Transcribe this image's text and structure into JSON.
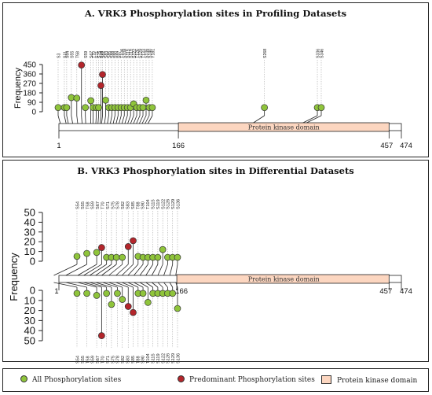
{
  "colors": {
    "green": "#8fc43b",
    "red": "#b3252b",
    "domain": "#fcd6c0"
  },
  "panelA": {
    "title": "A. VRK3 Phosphorylation sites in Profiling Datasets",
    "ylabel": "Frequency",
    "yticks": [
      "450",
      "360",
      "270",
      "180",
      "90",
      "0"
    ],
    "ymax": 450,
    "domain_label": "Protein kinase domain",
    "domain_start": 166,
    "domain_end": 457,
    "protein_length": 474,
    "axis_ticks": [
      "1",
      "166",
      "457",
      "474"
    ],
    "site_labels": [
      "S3",
      "S11",
      "S54",
      "S55",
      "T58",
      "S59",
      "S67",
      "T70",
      "S71",
      "S75",
      "S78",
      "S82",
      "S83",
      "S85",
      "S88",
      "S90",
      "S97",
      "T104",
      "S108",
      "S115",
      "S119",
      "S122",
      "T126",
      "S129",
      "T133",
      "S136",
      "S140",
      "Y181",
      "S268",
      "S336",
      "S346"
    ],
    "sites": [
      {
        "pos": 3,
        "freq": 40,
        "type": "all"
      },
      {
        "pos": 11,
        "freq": 40,
        "type": "all"
      },
      {
        "pos": 14,
        "freq": 40,
        "type": "all"
      },
      {
        "pos": 20,
        "freq": 135,
        "type": "all"
      },
      {
        "pos": 27,
        "freq": 130,
        "type": "all"
      },
      {
        "pos": 33,
        "freq": 445,
        "type": "predominant"
      },
      {
        "pos": 38,
        "freq": 40,
        "type": "all"
      },
      {
        "pos": 45,
        "freq": 105,
        "type": "all"
      },
      {
        "pos": 48,
        "freq": 40,
        "type": "all"
      },
      {
        "pos": 52,
        "freq": 40,
        "type": "all"
      },
      {
        "pos": 55,
        "freq": 40,
        "type": "all"
      },
      {
        "pos": 58,
        "freq": 250,
        "type": "predominant"
      },
      {
        "pos": 60,
        "freq": 355,
        "type": "predominant"
      },
      {
        "pos": 64,
        "freq": 110,
        "type": "all"
      },
      {
        "pos": 68,
        "freq": 40,
        "type": "all"
      },
      {
        "pos": 72,
        "freq": 40,
        "type": "all"
      },
      {
        "pos": 76,
        "freq": 40,
        "type": "all"
      },
      {
        "pos": 80,
        "freq": 40,
        "type": "all"
      },
      {
        "pos": 84,
        "freq": 40,
        "type": "all"
      },
      {
        "pos": 88,
        "freq": 40,
        "type": "all"
      },
      {
        "pos": 92,
        "freq": 40,
        "type": "all"
      },
      {
        "pos": 96,
        "freq": 40,
        "type": "all"
      },
      {
        "pos": 100,
        "freq": 75,
        "type": "all"
      },
      {
        "pos": 104,
        "freq": 40,
        "type": "all"
      },
      {
        "pos": 108,
        "freq": 40,
        "type": "all"
      },
      {
        "pos": 112,
        "freq": 40,
        "type": "all"
      },
      {
        "pos": 116,
        "freq": 110,
        "type": "all"
      },
      {
        "pos": 120,
        "freq": 40,
        "type": "all"
      },
      {
        "pos": 124,
        "freq": 40,
        "type": "all"
      },
      {
        "pos": 268,
        "freq": 40,
        "type": "all"
      },
      {
        "pos": 336,
        "freq": 40,
        "type": "all"
      },
      {
        "pos": 341,
        "freq": 40,
        "type": "all"
      }
    ]
  },
  "panelB": {
    "title": "B. VRK3 Phosphorylation sites in Differential Datasets",
    "ylabel": "Frequency",
    "yticks_up": [
      "50",
      "40",
      "30",
      "20",
      "10",
      "0"
    ],
    "yticks_down": [
      "0",
      "10",
      "20",
      "30",
      "40",
      "50"
    ],
    "ymax": 50,
    "domain_label": "Protein kinase domain",
    "domain_start": 166,
    "domain_end": 457,
    "protein_length": 474,
    "axis_ticks": [
      "1",
      "166",
      "457",
      "474"
    ],
    "site_labels": [
      "S54",
      "S55",
      "T58",
      "S59",
      "S67",
      "T70",
      "S71",
      "S75",
      "S78",
      "S82",
      "S83",
      "S85",
      "T88",
      "S90",
      "T104",
      "S115",
      "S119",
      "S122",
      "S126",
      "S129",
      "S136"
    ],
    "sites_up": [
      {
        "pos": 20,
        "freq": 5,
        "type": "all"
      },
      {
        "pos": 30,
        "freq": 8,
        "type": "all"
      },
      {
        "pos": 40,
        "freq": 9,
        "type": "all"
      },
      {
        "pos": 45,
        "freq": 14,
        "type": "predominant"
      },
      {
        "pos": 50,
        "freq": 4,
        "type": "all"
      },
      {
        "pos": 55,
        "freq": 4,
        "type": "all"
      },
      {
        "pos": 60,
        "freq": 4,
        "type": "all"
      },
      {
        "pos": 66,
        "freq": 4,
        "type": "all"
      },
      {
        "pos": 72,
        "freq": 15,
        "type": "predominant"
      },
      {
        "pos": 77,
        "freq": 21,
        "type": "predominant"
      },
      {
        "pos": 82,
        "freq": 5,
        "type": "all"
      },
      {
        "pos": 87,
        "freq": 4,
        "type": "all"
      },
      {
        "pos": 92,
        "freq": 4,
        "type": "all"
      },
      {
        "pos": 97,
        "freq": 4,
        "type": "all"
      },
      {
        "pos": 102,
        "freq": 4,
        "type": "all"
      },
      {
        "pos": 107,
        "freq": 12,
        "type": "all"
      },
      {
        "pos": 112,
        "freq": 4,
        "type": "all"
      },
      {
        "pos": 117,
        "freq": 4,
        "type": "all"
      },
      {
        "pos": 122,
        "freq": 4,
        "type": "all"
      }
    ],
    "sites_down": [
      {
        "pos": 20,
        "freq": 3,
        "type": "all"
      },
      {
        "pos": 30,
        "freq": 3,
        "type": "all"
      },
      {
        "pos": 40,
        "freq": 5,
        "type": "all"
      },
      {
        "pos": 45,
        "freq": 45,
        "type": "predominant"
      },
      {
        "pos": 50,
        "freq": 3,
        "type": "all"
      },
      {
        "pos": 55,
        "freq": 14,
        "type": "all"
      },
      {
        "pos": 61,
        "freq": 3,
        "type": "all"
      },
      {
        "pos": 66,
        "freq": 9,
        "type": "all"
      },
      {
        "pos": 72,
        "freq": 16,
        "type": "predominant"
      },
      {
        "pos": 77,
        "freq": 22,
        "type": "predominant"
      },
      {
        "pos": 82,
        "freq": 3,
        "type": "all"
      },
      {
        "pos": 87,
        "freq": 3,
        "type": "all"
      },
      {
        "pos": 92,
        "freq": 12,
        "type": "all"
      },
      {
        "pos": 97,
        "freq": 3,
        "type": "all"
      },
      {
        "pos": 102,
        "freq": 3,
        "type": "all"
      },
      {
        "pos": 107,
        "freq": 3,
        "type": "all"
      },
      {
        "pos": 112,
        "freq": 3,
        "type": "all"
      },
      {
        "pos": 117,
        "freq": 3,
        "type": "all"
      },
      {
        "pos": 122,
        "freq": 18,
        "type": "all"
      }
    ]
  },
  "legend": {
    "all_label": "All Phosphorylation sites",
    "predominant_label": "Predominant Phosphorylation sites",
    "domain_label": "Protein kinase domain"
  }
}
